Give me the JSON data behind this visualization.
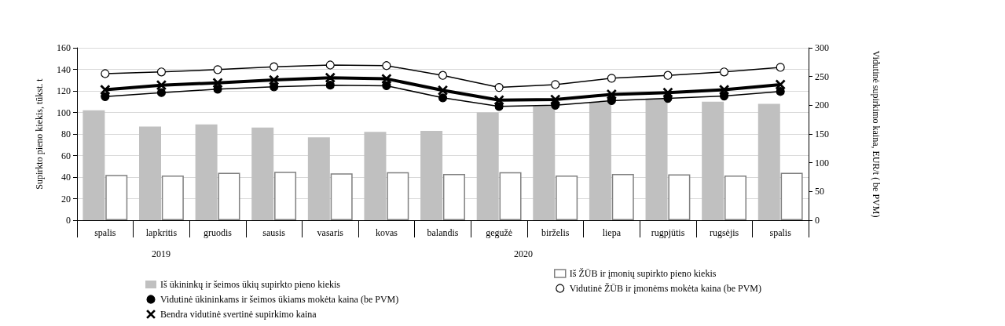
{
  "chart_data": {
    "type": "bar",
    "ylabel": "Supirkto pieno kiekis, tūkst. t",
    "y2label": "Vidutinė supirkimo kaina, EUR/t ( be PVM)",
    "categories": [
      "spalis",
      "lapkritis",
      "gruodis",
      "sausis",
      "vasaris",
      "kovas",
      "balandis",
      "gegužė",
      "birželis",
      "liepa",
      "rugpjūtis",
      "rugsėjis",
      "spalis"
    ],
    "series": [
      {
        "name": "Iš ūkininkų ir šeimos ūkių supirkto pieno kiekis",
        "color": "#c0c0c0",
        "values": [
          102,
          87,
          89,
          86,
          77,
          82,
          83,
          100,
          106,
          110,
          113,
          110,
          108
        ]
      },
      {
        "name": "Iš ŽŪB ir įmonių supirkto pieno kiekis",
        "color": "#ffffff",
        "values": [
          42,
          41.5,
          44,
          45,
          43.5,
          44.5,
          43,
          44.5,
          41.5,
          43,
          42.5,
          41.5,
          44
        ]
      },
      {
        "name": "Vidutinė ūkininkams ir šeimos ūkiams mokėta kaina (be PVM)",
        "type": "line",
        "axis": "y2",
        "color": "#000000",
        "marker": "circle",
        "values": [
          215,
          222,
          228,
          232,
          235,
          234,
          213,
          198,
          200,
          208,
          212,
          216,
          224
        ]
      },
      {
        "name": "Vidutinė ŽŪB ir įmonėms mokėta kaina (be PVM)",
        "type": "line",
        "axis": "y2",
        "color": "#000000",
        "marker": "circle",
        "values": [
          255,
          258,
          262,
          267,
          270,
          269,
          252,
          231,
          236,
          247,
          252,
          258,
          266
        ]
      },
      {
        "name": "Bendra vidutinė svertinė supirkimo kaina",
        "type": "line",
        "axis": "y2",
        "color": "#000000",
        "marker": "cross",
        "values": [
          227,
          235,
          239,
          244,
          248,
          246,
          226,
          209,
          210,
          219,
          222,
          227,
          236
        ]
      }
    ],
    "ylim": [
      0,
      160
    ],
    "yticks": [
      0,
      20,
      40,
      60,
      80,
      100,
      120,
      140,
      160
    ],
    "y2lim": [
      0,
      300
    ],
    "y2ticks": [
      0,
      50,
      100,
      150,
      200,
      250,
      300
    ],
    "grid": "y",
    "legend": "bottom",
    "annotations": [
      "2019",
      "2020"
    ]
  }
}
